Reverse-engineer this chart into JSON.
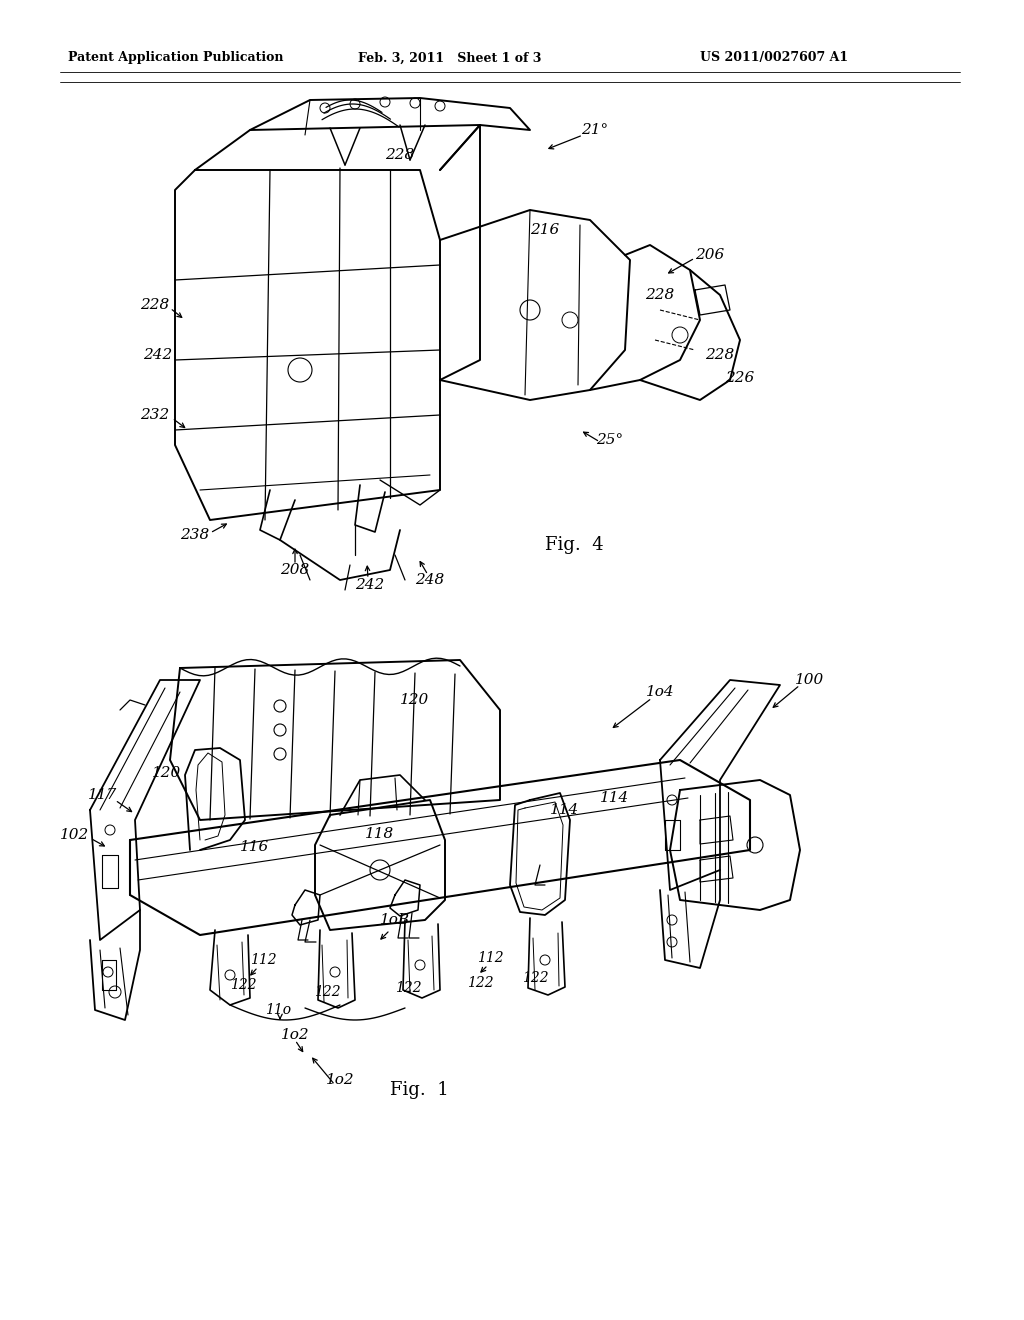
{
  "background_color": "#ffffff",
  "header_left": "Patent Application Publication",
  "header_center": "Feb. 3, 2011   Sheet 1 of 3",
  "header_right": "US 2011/0027607 A1",
  "fig4_label": "Fig.  4",
  "fig1_label": "Fig.  1",
  "header_fontsize": 9,
  "label_fontsize": 10.5
}
